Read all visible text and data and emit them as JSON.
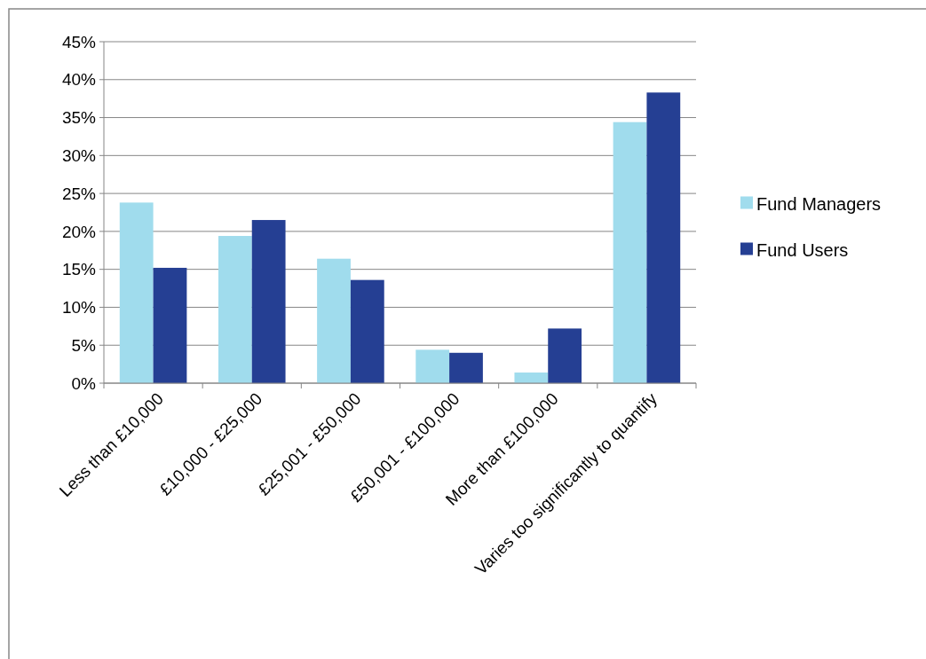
{
  "chart_data": {
    "type": "bar",
    "categories": [
      "Less than £10,000",
      "£10,000 - £25,000",
      "£25,001 - £50,000",
      "£50,001 - £100,000",
      "More than £100,000",
      "Varies too significantly to quantify"
    ],
    "series": [
      {
        "name": "Fund Managers",
        "color": "#a0dced",
        "values": [
          23.8,
          19.4,
          16.4,
          4.4,
          1.4,
          34.4
        ]
      },
      {
        "name": "Fund Users",
        "color": "#253f93",
        "values": [
          15.2,
          21.5,
          13.6,
          4.0,
          7.2,
          38.3
        ]
      }
    ],
    "ylim": [
      0,
      45
    ],
    "yticks": [
      {
        "value": 0,
        "label": "0%"
      },
      {
        "value": 5,
        "label": "5%"
      },
      {
        "value": 10,
        "label": "10%"
      },
      {
        "value": 15,
        "label": "15%"
      },
      {
        "value": 20,
        "label": "20%"
      },
      {
        "value": 25,
        "label": "25%"
      },
      {
        "value": 30,
        "label": "30%"
      },
      {
        "value": 35,
        "label": "35%"
      },
      {
        "value": 40,
        "label": "40%"
      },
      {
        "value": 45,
        "label": "45%"
      }
    ],
    "grid": "y",
    "legend": "right"
  }
}
